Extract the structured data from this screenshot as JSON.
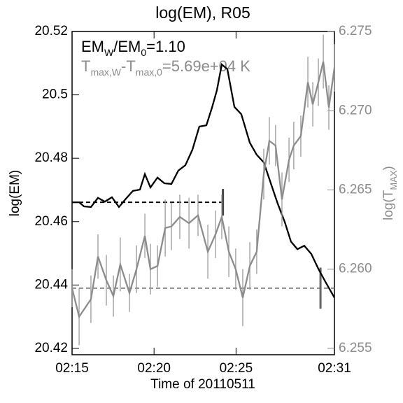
{
  "chart_data": {
    "type": "line",
    "title": "log(EM), R05",
    "xlabel": "Time of 20110511",
    "ylabel": "log(EM)",
    "y2label": [
      "log(T",
      "MAX",
      ")"
    ],
    "annotations": [
      {
        "parts": [
          "EM",
          "W",
          "/EM",
          "0",
          "=1.10"
        ],
        "color": "#000000"
      },
      {
        "parts": [
          "T",
          "max,W",
          "-T",
          "max,0",
          "=5.69e+04 K"
        ],
        "color": "#8c8c8c"
      }
    ],
    "xlim": [
      0,
      16
    ],
    "xticks": [
      {
        "value": 0,
        "label": "02:15"
      },
      {
        "value": 5,
        "label": "02:20"
      },
      {
        "value": 10,
        "label": "02:25"
      },
      {
        "value": 16,
        "label": "02:31"
      }
    ],
    "ylim": [
      20.418,
      20.52
    ],
    "yticks": [
      20.42,
      20.44,
      20.46,
      20.48,
      20.5,
      20.52
    ],
    "y2lim": [
      6.2546,
      6.275
    ],
    "y2ticks": [
      6.255,
      6.26,
      6.265,
      6.27,
      6.275
    ],
    "series": [
      {
        "name": "EM",
        "color": "#000000",
        "axis": "y",
        "x": [
          0,
          0.43,
          0.73,
          1.15,
          1.58,
          2.0,
          2.43,
          2.86,
          3.28,
          3.71,
          4.14,
          4.44,
          4.78,
          5.21,
          5.63,
          6.06,
          6.48,
          6.91,
          7.34,
          7.76,
          8.19,
          8.53,
          8.83,
          9.13,
          9.47,
          9.9,
          10.32,
          10.84,
          11.26,
          11.69,
          12.12,
          12.54,
          12.97,
          13.35,
          13.74,
          14.16,
          14.59,
          15.02,
          15.44,
          16
        ],
        "values": [
          20.4661,
          20.4661,
          20.4648,
          20.4646,
          20.4675,
          20.4663,
          20.4677,
          20.4646,
          20.4672,
          20.4697,
          20.4701,
          20.475,
          20.4708,
          20.4739,
          20.4721,
          20.4719,
          20.4761,
          20.4778,
          20.4827,
          20.49,
          20.4904,
          20.4959,
          20.5014,
          20.5096,
          20.5081,
          20.4962,
          20.4939,
          20.4849,
          20.4811,
          20.4787,
          20.4721,
          20.4657,
          20.4599,
          20.4537,
          20.4513,
          20.4524,
          20.4498,
          20.4451,
          20.4411,
          20.436
        ]
      },
      {
        "name": "Tmax",
        "color": "#8c8c8c",
        "axis": "y2",
        "x": [
          0,
          0.43,
          1.15,
          1.58,
          2.09,
          2.52,
          2.94,
          3.5,
          3.93,
          4.44,
          4.78,
          5.21,
          5.68,
          6.06,
          6.57,
          7.13,
          7.68,
          8.28,
          8.75,
          9.13,
          9.56,
          9.98,
          10.41,
          10.84,
          11.26,
          11.69,
          12.03,
          12.41,
          12.8,
          13.23,
          13.52,
          13.95,
          14.38,
          14.68,
          15.02,
          15.32,
          15.66,
          16
        ],
        "values": [
          6.2588,
          6.257,
          6.2581,
          6.2608,
          6.2593,
          6.2583,
          6.2603,
          6.2585,
          6.26,
          6.2621,
          6.26,
          6.2602,
          6.2626,
          6.2627,
          6.2633,
          6.2629,
          6.2634,
          6.2611,
          6.2622,
          6.2633,
          6.2611,
          6.26,
          6.2582,
          6.2602,
          6.2611,
          6.266,
          6.2681,
          6.2678,
          6.2644,
          6.2669,
          6.2678,
          6.2684,
          6.2718,
          6.2704,
          6.2718,
          6.2731,
          6.2702,
          6.2727
        ],
        "errors": [
          0.0012,
          0.0018,
          0.0015,
          0.0014,
          0.0016,
          0.0013,
          0.0017,
          0.0012,
          0.0015,
          0.0014,
          0.0016,
          0.0013,
          0.0018,
          0.0015,
          0.0014,
          0.0016,
          0.0013,
          0.0017,
          0.0015,
          0.0014,
          0.0016,
          0.0013,
          0.0018,
          0.0015,
          0.0014,
          0.0016,
          0.0015,
          0.0013,
          0.0017,
          0.0014,
          0.0015,
          0.0013,
          0.0016,
          0.0014,
          0.0015,
          0.0017,
          0.0014,
          0.0015
        ]
      }
    ],
    "baselines": [
      {
        "axis": "y",
        "color": "#000000",
        "value": 20.4661,
        "x_end": 9.2,
        "error": 0.0042
      },
      {
        "axis": "y2",
        "color": "#8c8c8c",
        "value": 6.2588,
        "x_end": 16,
        "error_x": 15.15,
        "error": 0.0013
      }
    ]
  }
}
